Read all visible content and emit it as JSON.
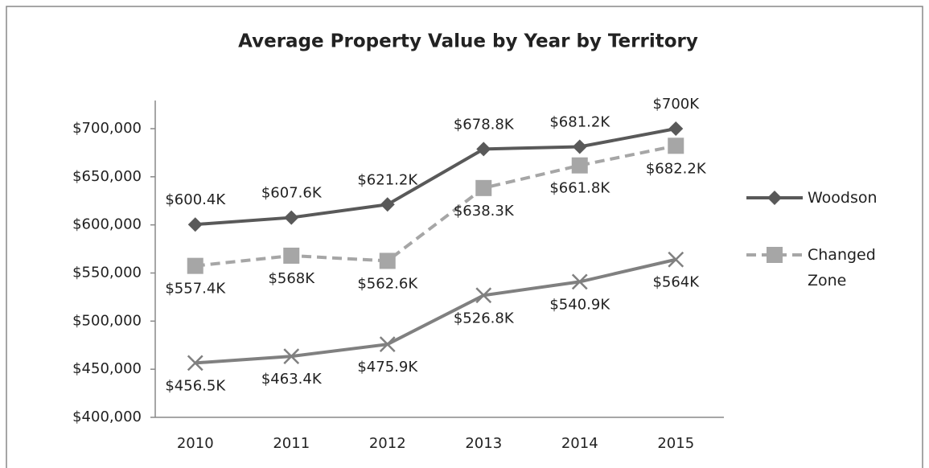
{
  "chart_data": {
    "type": "line",
    "title": "Average Property Value by Year by Territory",
    "categories": [
      "2010",
      "2011",
      "2012",
      "2013",
      "2014",
      "2015"
    ],
    "series": [
      {
        "name": "Woodson",
        "color": "#595959",
        "marker": "diamond",
        "dash": false,
        "values": [
          600400,
          607600,
          621200,
          678800,
          681200,
          700000
        ],
        "value_labels": [
          "$600.4K",
          "$607.6K",
          "$621.2K",
          "$678.8K",
          "$681.2K",
          "$700K"
        ]
      },
      {
        "name": "Changed Zone",
        "color": "#a6a6a6",
        "marker": "square",
        "dash": true,
        "values": [
          557400,
          568000,
          562600,
          638300,
          661800,
          682200
        ],
        "value_labels": [
          "$557.4K",
          "$568K",
          "$562.6K",
          "$638.3K",
          "$661.8K",
          "$682.2K"
        ]
      },
      {
        "color": "#808080",
        "marker": "x",
        "dash": false,
        "values": [
          456500,
          463400,
          475900,
          526800,
          540900,
          564000
        ],
        "value_labels": [
          "$456.5K",
          "$463.4K",
          "$475.9K",
          "$526.8K",
          "$540.9K",
          "$564K"
        ]
      }
    ],
    "ylim": [
      400000,
      700000
    ],
    "yticks": [
      {
        "value": 400000,
        "label": "$400,000"
      },
      {
        "value": 450000,
        "label": "$450,000"
      },
      {
        "value": 500000,
        "label": "$500,000"
      },
      {
        "value": 550000,
        "label": "$550,000"
      },
      {
        "value": 600000,
        "label": "$600,000"
      },
      {
        "value": 650000,
        "label": "$650,000"
      },
      {
        "value": 700000,
        "label": "$700,000"
      }
    ],
    "grid": false,
    "legend": "right"
  }
}
